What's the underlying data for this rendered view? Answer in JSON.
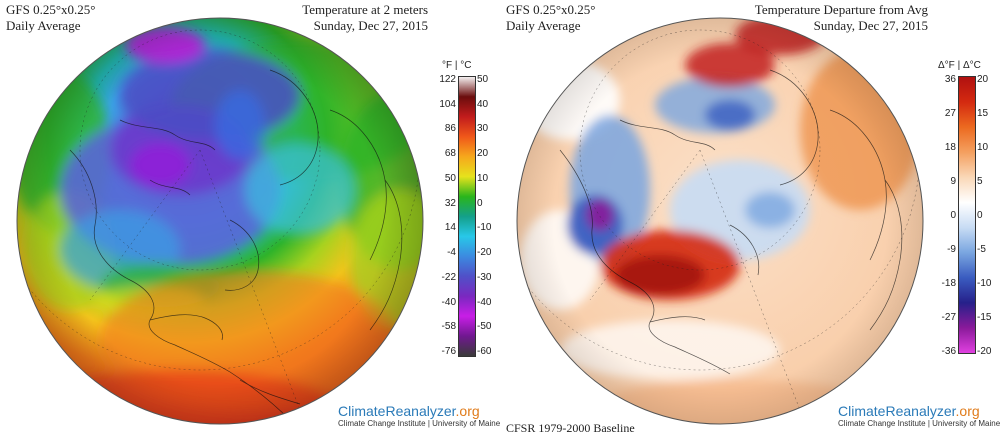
{
  "left_panel": {
    "header_left": [
      "GFS 0.25°x0.25°",
      "Daily Average"
    ],
    "header_right": [
      "Temperature at 2 meters",
      "Sunday, Dec 27, 2015"
    ],
    "colorbar": {
      "title": "°F | °C",
      "left_ticks": [
        "122",
        "104",
        "86",
        "68",
        "50",
        "32",
        "14",
        "-4",
        "-22",
        "-40",
        "-58",
        "-76"
      ],
      "right_ticks": [
        "50",
        "40",
        "30",
        "20",
        "10",
        "0",
        "-10",
        "-20",
        "-30",
        "-40",
        "-50",
        "-60"
      ],
      "colors": [
        "#f4f0f0",
        "#6b0d0d",
        "#c21c1c",
        "#f0581a",
        "#f6a81c",
        "#e6e21c",
        "#2ab51c",
        "#14a08a",
        "#28c8e8",
        "#3c8ae0",
        "#5050c8",
        "#7a28c0",
        "#c81ee6",
        "#701890",
        "#3a3a3a"
      ]
    },
    "brand": {
      "name_a": "Climate",
      "name_b": "Reanalyzer",
      "name_c": ".org",
      "sub": "Climate Change Institute | University of Maine"
    }
  },
  "right_panel": {
    "header_left": [
      "GFS 0.25°x0.25°",
      "Daily Average"
    ],
    "header_right": [
      "Temperature Departure from Avg",
      "Sunday, Dec 27, 2015"
    ],
    "colorbar": {
      "title": "Δ°F | Δ°C",
      "left_ticks": [
        "36",
        "27",
        "18",
        "9",
        "0",
        "-9",
        "-18",
        "-27",
        "-36"
      ],
      "right_ticks": [
        "20",
        "15",
        "10",
        "5",
        "0",
        "-5",
        "-10",
        "-15",
        "-20"
      ],
      "colors": [
        "#b01010",
        "#d42a10",
        "#ec6a20",
        "#f4a060",
        "#fad8b8",
        "#ffffff",
        "#c8dcf4",
        "#7aa6e0",
        "#3a5cc0",
        "#26208a",
        "#8a1a9a",
        "#e040e0"
      ]
    },
    "baseline": "CFSR 1979-2000 Baseline",
    "brand": {
      "name_a": "Climate",
      "name_b": "Reanalyzer",
      "name_c": ".org",
      "sub": "Climate Change Institute | University of Maine"
    }
  }
}
